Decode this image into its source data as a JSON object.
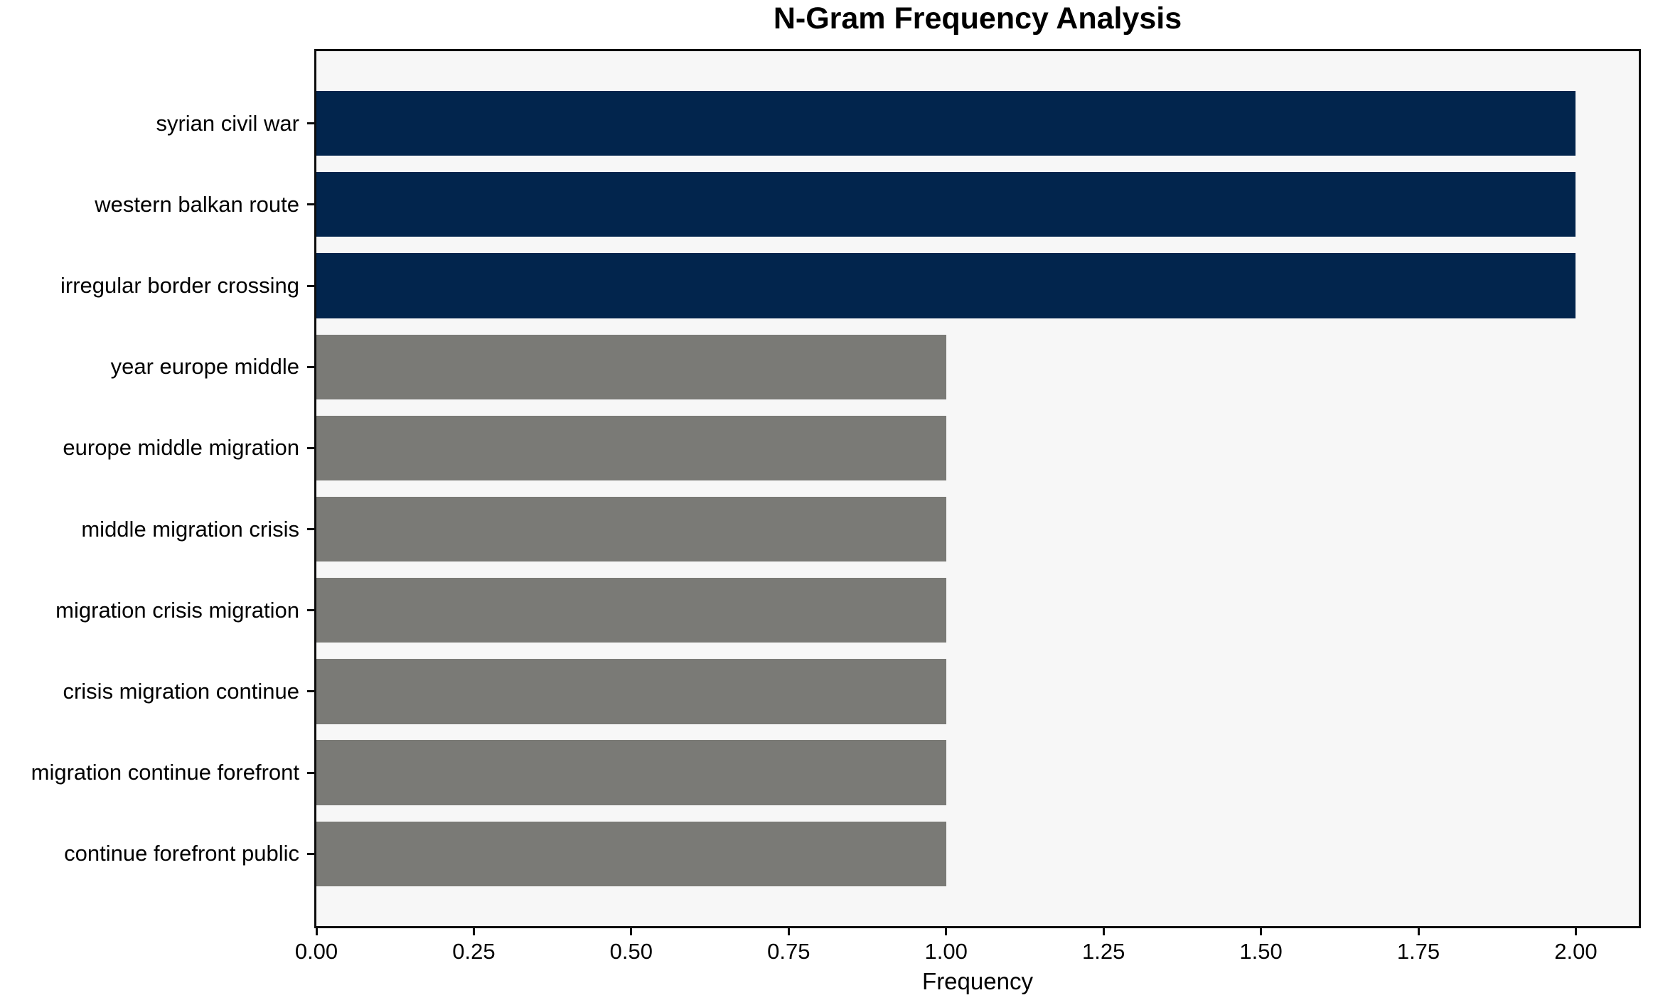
{
  "chart_data": {
    "type": "bar",
    "orientation": "horizontal",
    "title": "N-Gram Frequency Analysis",
    "xlabel": "Frequency",
    "ylabel": "",
    "categories": [
      "syrian civil war",
      "western balkan route",
      "irregular border crossing",
      "year europe middle",
      "europe middle migration",
      "middle migration crisis",
      "migration crisis migration",
      "crisis migration continue",
      "migration continue forefront",
      "continue forefront public"
    ],
    "values": [
      2,
      2,
      2,
      1,
      1,
      1,
      1,
      1,
      1,
      1
    ],
    "bar_colors": [
      "#02254d",
      "#02254d",
      "#02254d",
      "#7a7a76",
      "#7a7a76",
      "#7a7a76",
      "#7a7a76",
      "#7a7a76",
      "#7a7a76",
      "#7a7a76"
    ],
    "xlim": [
      0,
      2.1
    ],
    "xticks": {
      "values": [
        0.0,
        0.25,
        0.5,
        0.75,
        1.0,
        1.25,
        1.5,
        1.75,
        2.0
      ],
      "labels": [
        "0.00",
        "0.25",
        "0.50",
        "0.75",
        "1.00",
        "1.25",
        "1.50",
        "1.75",
        "2.00"
      ]
    },
    "grid": false,
    "legend": null,
    "colors": {
      "highlight_bar": "#02254d",
      "normal_bar": "#7a7a76",
      "plot_background": "#f7f7f7",
      "figure_background": "#ffffff",
      "axis_line": "#0d0d0d",
      "text": "#000000"
    }
  }
}
